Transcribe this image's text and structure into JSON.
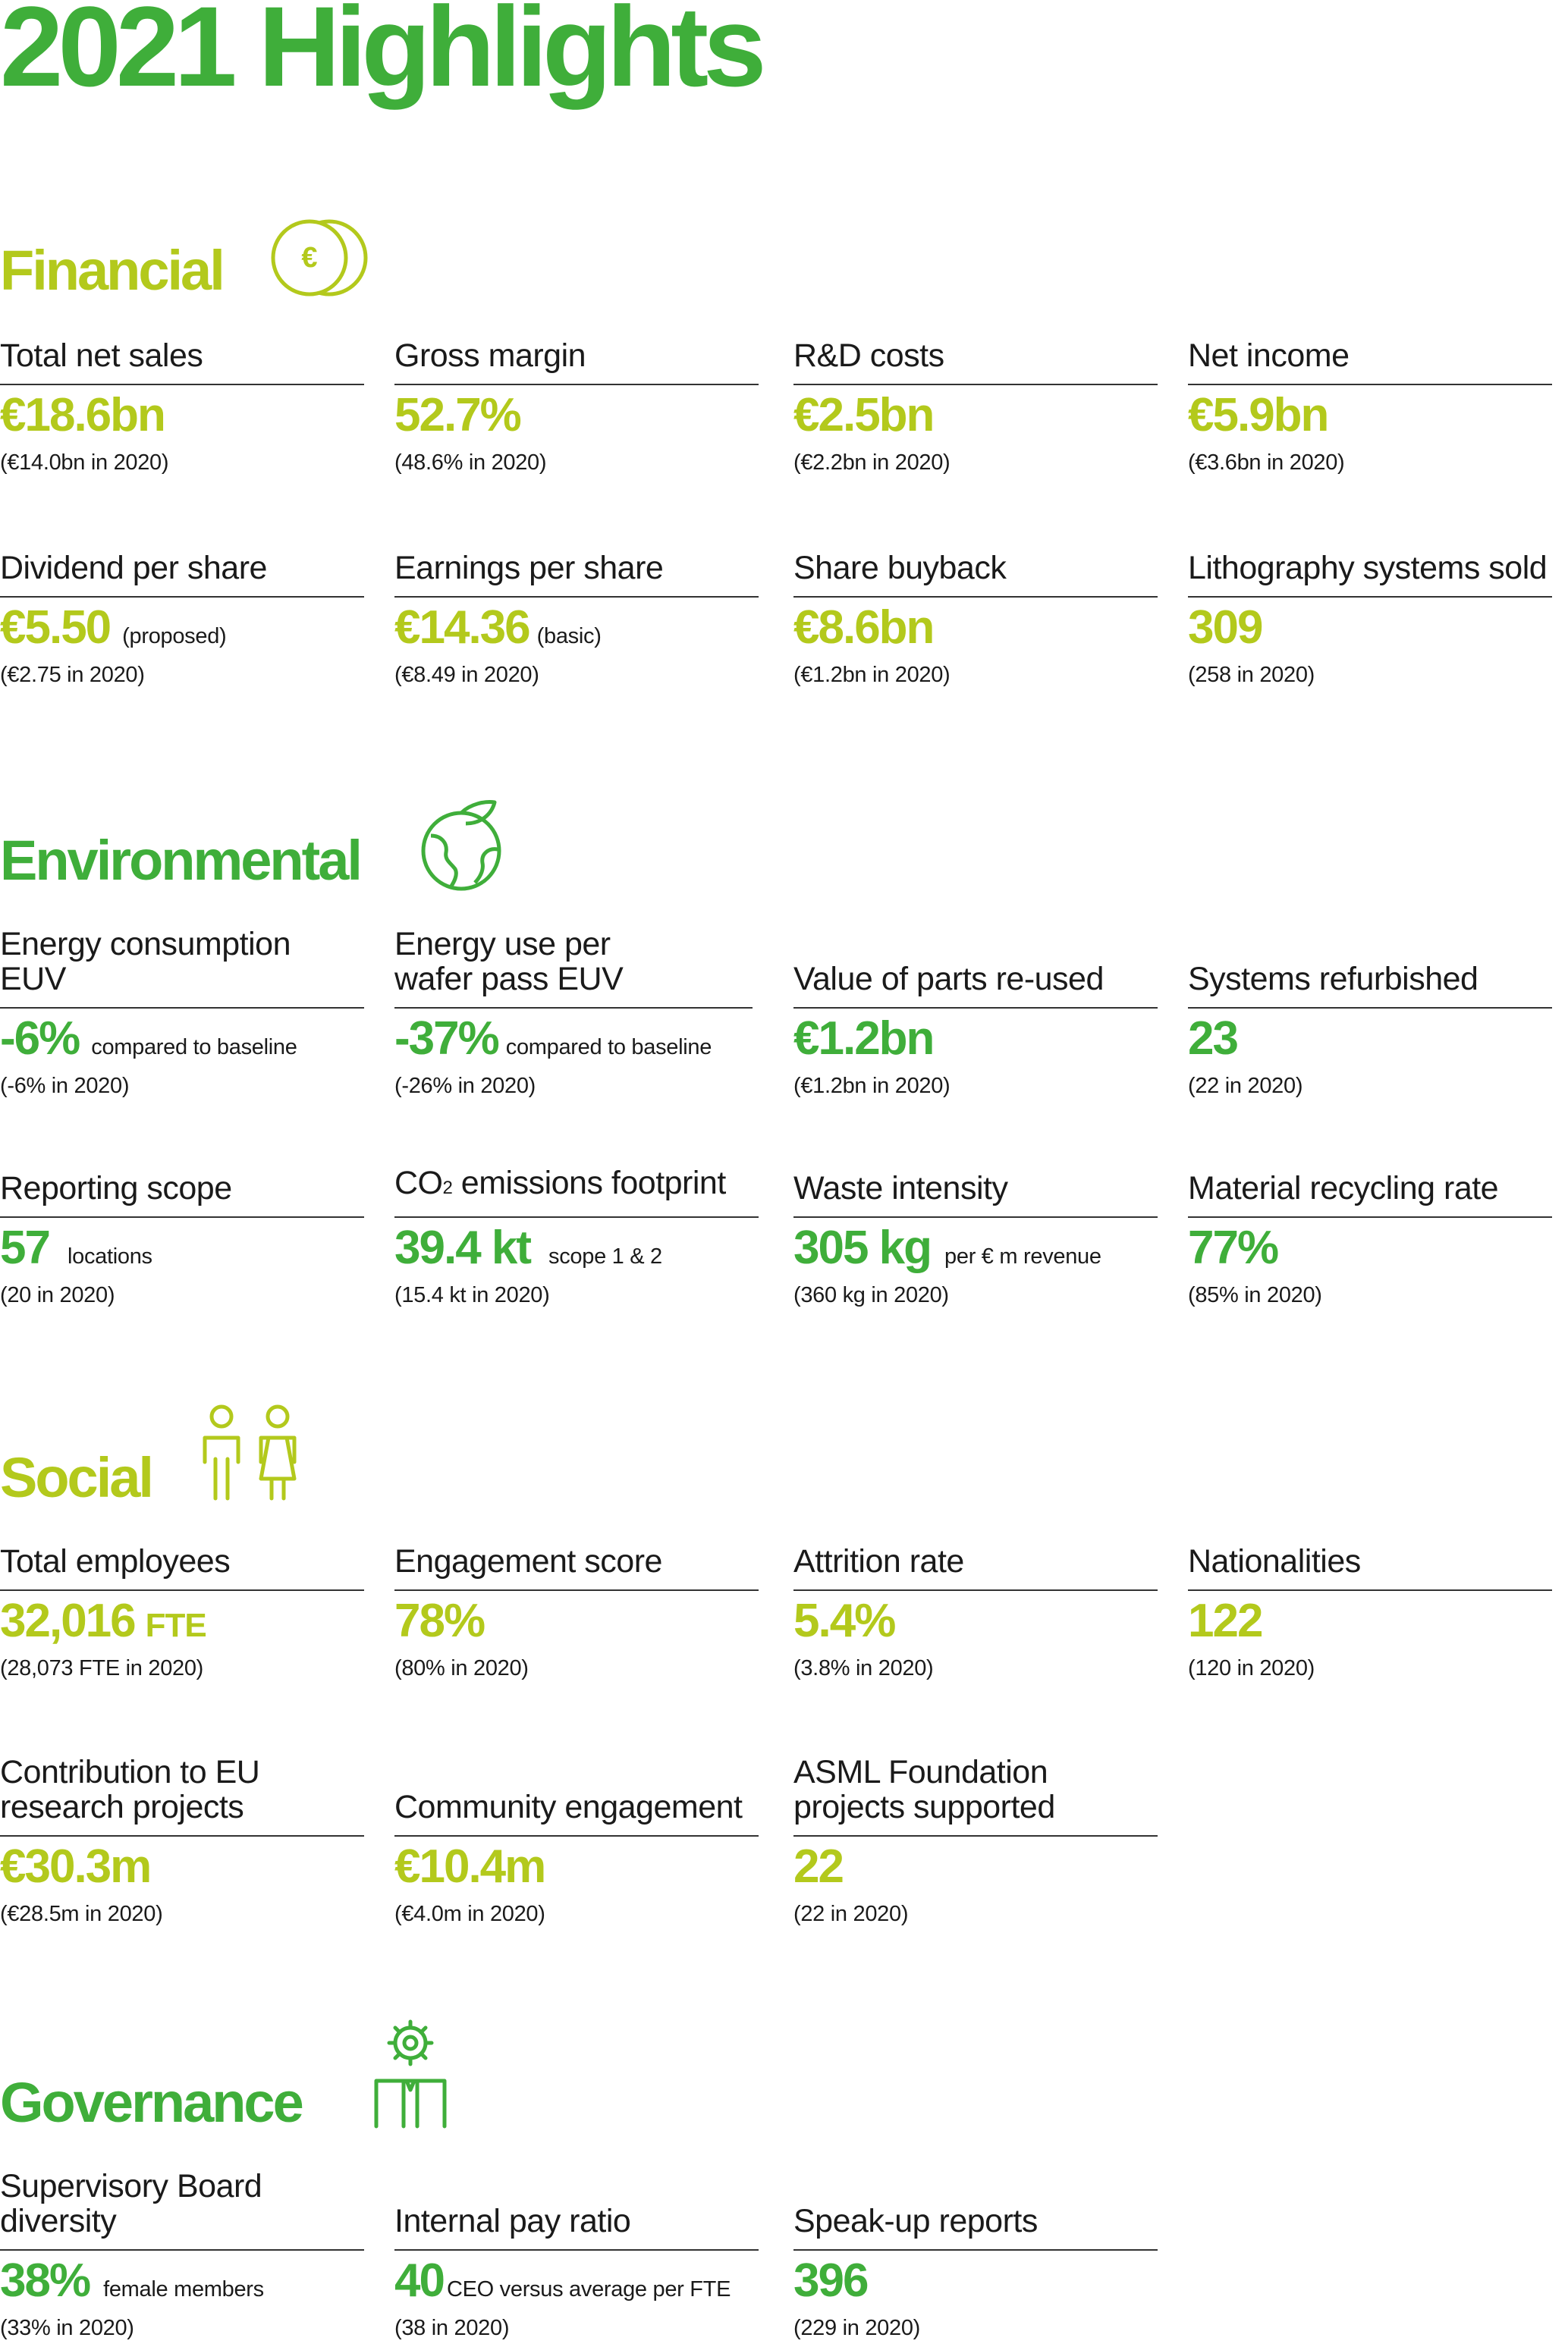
{
  "title": "2021 Highlights",
  "colors": {
    "title": "#3fae3a",
    "lime": "#b3c91c",
    "green": "#3fae3a",
    "rule": "#333333"
  },
  "financial": {
    "heading": "Financial",
    "icon": "euro-coins-icon",
    "items": [
      {
        "label": "Total net sales",
        "value": "€18.6bn",
        "prior": "(€14.0bn in 2020)"
      },
      {
        "label": "Gross margin",
        "value": "52.7%",
        "prior": "(48.6% in 2020)"
      },
      {
        "label": "R&D costs",
        "value": "€2.5bn",
        "prior": "(€2.2bn in 2020)"
      },
      {
        "label": "Net income",
        "value": "€5.9bn",
        "prior": "(€3.6bn in 2020)"
      },
      {
        "label": "Dividend per share",
        "value": "€5.50",
        "qualifier": "(proposed)",
        "prior": "(€2.75 in 2020)"
      },
      {
        "label": "Earnings per share",
        "value": "€14.36",
        "qualifier": "(basic)",
        "prior": "(€8.49 in 2020)"
      },
      {
        "label": "Share buyback",
        "value": "€8.6bn",
        "prior": "(€1.2bn in 2020)"
      },
      {
        "label": "Lithography systems sold",
        "value": "309",
        "prior": "(258 in 2020)"
      }
    ]
  },
  "environmental": {
    "heading": "Environmental",
    "icon": "globe-leaf-icon",
    "items": [
      {
        "label": "Energy consumption EUV",
        "value": "-6%",
        "qualifier": "compared to baseline",
        "prior": "(-6% in 2020)"
      },
      {
        "label": "Energy use per wafer pass EUV",
        "value": "-37%",
        "qualifier": "compared to baseline",
        "prior": "(-26% in 2020)"
      },
      {
        "label": "Value of parts re-used",
        "value": "€1.2bn",
        "prior": "(€1.2bn in 2020)"
      },
      {
        "label": "Systems refurbished",
        "value": "23",
        "prior": "(22 in 2020)"
      },
      {
        "label": "Reporting scope",
        "value": "57",
        "qualifier": "locations",
        "prior": "(20 in 2020)"
      },
      {
        "label_main": "CO",
        "label_sub": "2",
        "label_rest": " emissions footprint",
        "value": "39.4 kt",
        "qualifier": "scope 1 & 2",
        "prior": "(15.4 kt in 2020)"
      },
      {
        "label": "Waste intensity",
        "value": "305 kg",
        "qualifier": "per € m revenue",
        "prior": "(360 kg in 2020)"
      },
      {
        "label": "Material recycling rate",
        "value": "77%",
        "prior": "(85% in 2020)"
      }
    ]
  },
  "social": {
    "heading": "Social",
    "icon": "people-icon",
    "items": [
      {
        "label": "Total employees",
        "value": "32,016",
        "qualifier": "FTE",
        "prior": "(28,073 FTE in 2020)"
      },
      {
        "label": "Engagement score",
        "value": "78%",
        "prior": "(80% in 2020)"
      },
      {
        "label": "Attrition rate",
        "value": "5.4%",
        "prior": "(3.8% in 2020)"
      },
      {
        "label": "Nationalities",
        "value": "122",
        "prior": "(120 in 2020)"
      },
      {
        "label": "Contribution to EU research projects",
        "value": "€30.3m",
        "prior": "(€28.5m in 2020)"
      },
      {
        "label": "Community engagement",
        "value": "€10.4m",
        "prior": "(€4.0m in 2020)"
      },
      {
        "label": "ASML Foundation projects supported",
        "value": "22",
        "prior": "(22 in 2020)"
      }
    ]
  },
  "governance": {
    "heading": "Governance",
    "icon": "gear-person-icon",
    "items": [
      {
        "label": "Supervisory Board diversity",
        "value": "38%",
        "qualifier": "female members",
        "prior": "(33% in 2020)"
      },
      {
        "label": "Internal pay ratio",
        "value": "40",
        "qualifier": "CEO versus average per FTE",
        "prior": "(38 in 2020)"
      },
      {
        "label": "Speak-up reports",
        "value": "396",
        "prior": "(229 in 2020)"
      }
    ]
  }
}
